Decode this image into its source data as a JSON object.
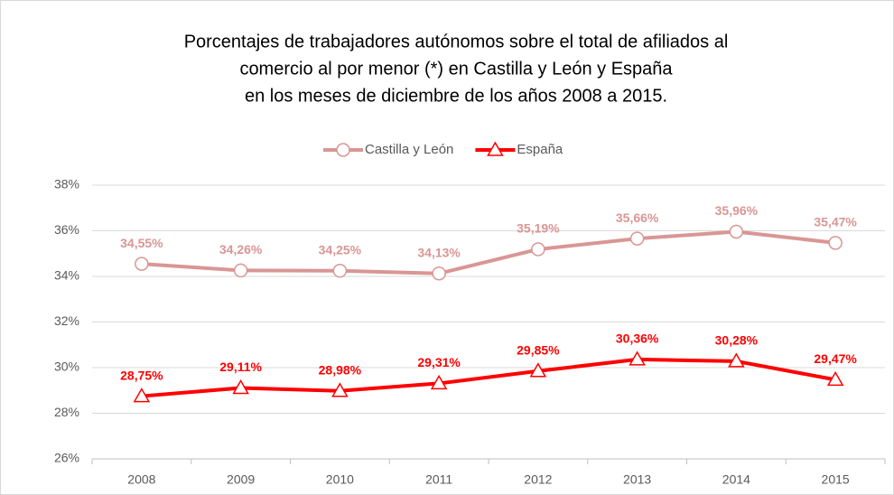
{
  "chart_data": {
    "type": "line",
    "title": [
      "Porcentajes de trabajadores autónomos sobre el total de afiliados al",
      "comercio al por menor (*) en Castilla y León y España",
      "en los meses de diciembre de los años 2008 a 2015."
    ],
    "categories": [
      "2008",
      "2009",
      "2010",
      "2011",
      "2012",
      "2013",
      "2014",
      "2015"
    ],
    "series": [
      {
        "name": "Castilla y León",
        "color": "#d99694",
        "marker": "circle",
        "values": [
          34.55,
          34.26,
          34.25,
          34.13,
          35.19,
          35.66,
          35.96,
          35.47
        ],
        "value_labels": [
          "34,55%",
          "34,26%",
          "34,25%",
          "34,13%",
          "35,19%",
          "35,66%",
          "35,96%",
          "35,47%"
        ]
      },
      {
        "name": "España",
        "color": "#ff0000",
        "marker": "triangle",
        "values": [
          28.75,
          29.11,
          28.98,
          29.31,
          29.85,
          30.36,
          30.28,
          29.47
        ],
        "value_labels": [
          "28,75%",
          "29,11%",
          "28,98%",
          "29,31%",
          "29,85%",
          "30,36%",
          "30,28%",
          "29,47%"
        ]
      }
    ],
    "ylim": [
      26,
      38
    ],
    "yticks": [
      {
        "value": 26,
        "label": "26%"
      },
      {
        "value": 28,
        "label": "28%"
      },
      {
        "value": 30,
        "label": "30%"
      },
      {
        "value": 32,
        "label": "32%"
      },
      {
        "value": 34,
        "label": "34%"
      },
      {
        "value": 36,
        "label": "36%"
      },
      {
        "value": 38,
        "label": "38%"
      }
    ],
    "grid": true,
    "legend": "top"
  }
}
